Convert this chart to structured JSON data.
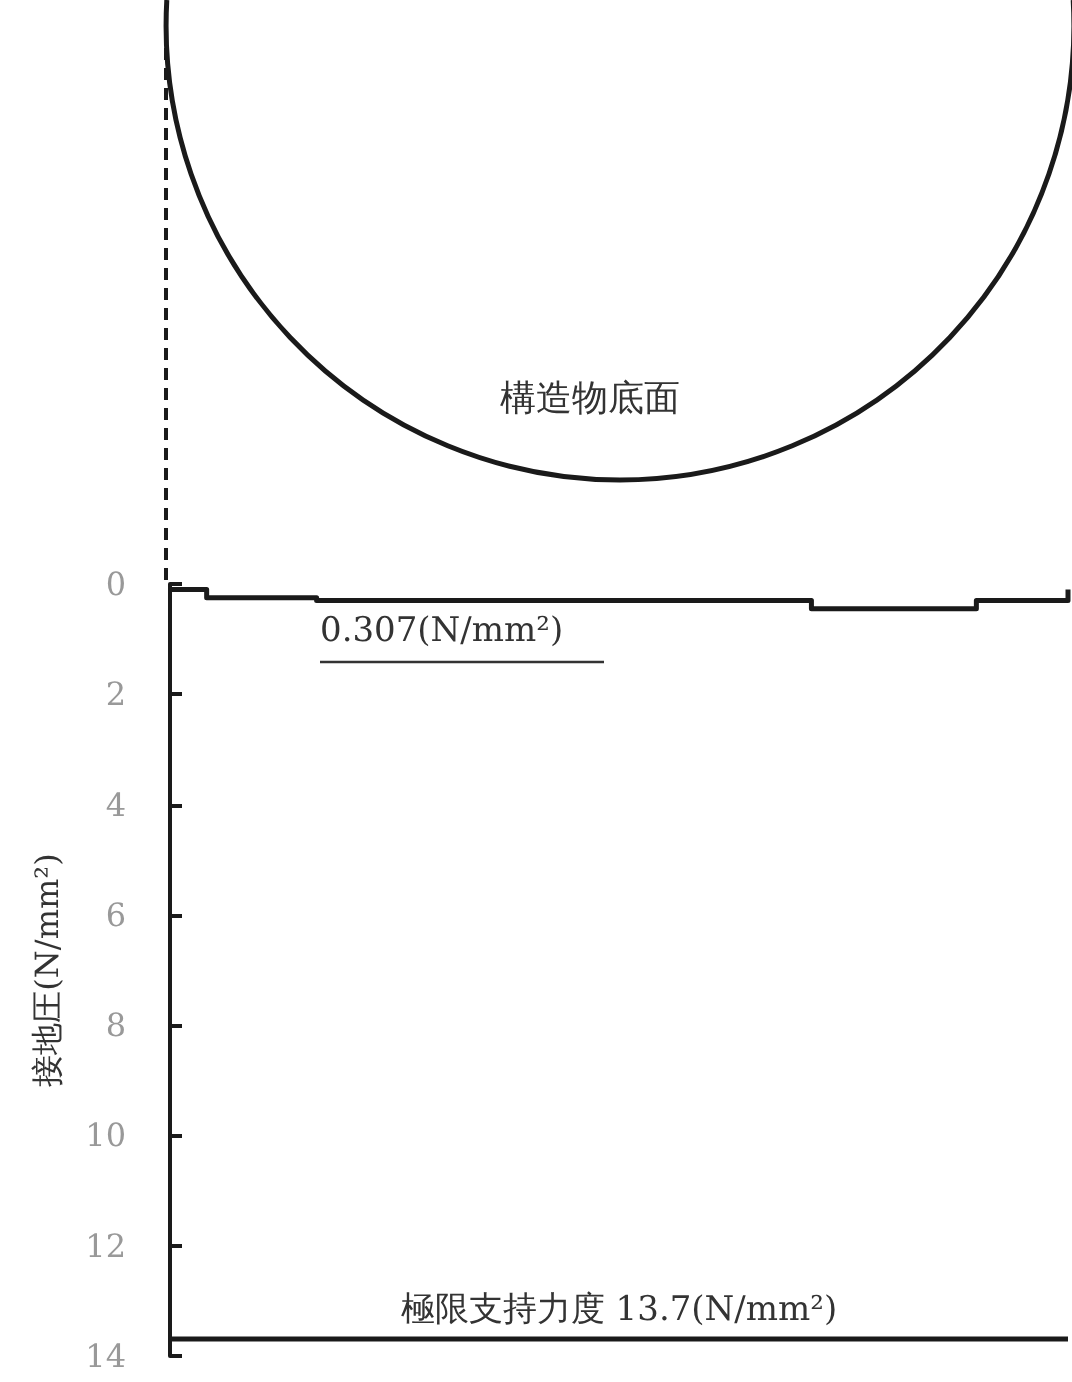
{
  "chart_data": {
    "type": "step",
    "ylabel": "接地圧(N/mm²)",
    "categories": [
      null,
      null,
      null,
      null,
      null,
      null,
      null,
      null,
      null,
      null,
      null,
      null,
      null,
      null,
      null,
      null,
      null,
      null,
      null,
      null,
      null,
      null,
      null,
      null,
      null,
      null,
      null,
      null,
      null,
      null,
      null,
      null,
      null,
      null,
      null,
      null,
      null,
      null,
      null,
      null,
      null,
      null,
      null,
      null,
      null,
      null,
      null,
      null,
      null,
      null
    ],
    "values": [
      0.1,
      0.1,
      0.25,
      0.25,
      0.25,
      0.25,
      0.25,
      0.25,
      0.3,
      0.3,
      0.3,
      0.3,
      0.3,
      0.3,
      0.3,
      0.3,
      0.3,
      0.3,
      0.3,
      0.3,
      0.3,
      0.3,
      0.3,
      0.3,
      0.3,
      0.3,
      0.3,
      0.3,
      0.3,
      0.3,
      0.3,
      0.3,
      0.3,
      0.3,
      0.3,
      0.45,
      0.45,
      0.45,
      0.45,
      0.45,
      0.45,
      0.45,
      0.45,
      0.45,
      0.3,
      0.3,
      0.3,
      0.3,
      0.3,
      0.1
    ],
    "color": "#1a1a1a",
    "ylim": [
      14,
      0
    ],
    "yticks": [
      0,
      2,
      4,
      6,
      8,
      10,
      12,
      14
    ],
    "ref_lines": [
      {
        "axis": "y",
        "value": 13.7,
        "label": "極限支持力度 13.7(N/mm²)",
        "color": "#1a1a1a"
      }
    ],
    "annotations": [
      "0.307(N/mm²)",
      "構造物底面"
    ],
    "tick_labels": "y",
    "grid": false,
    "line_style": "solid"
  }
}
